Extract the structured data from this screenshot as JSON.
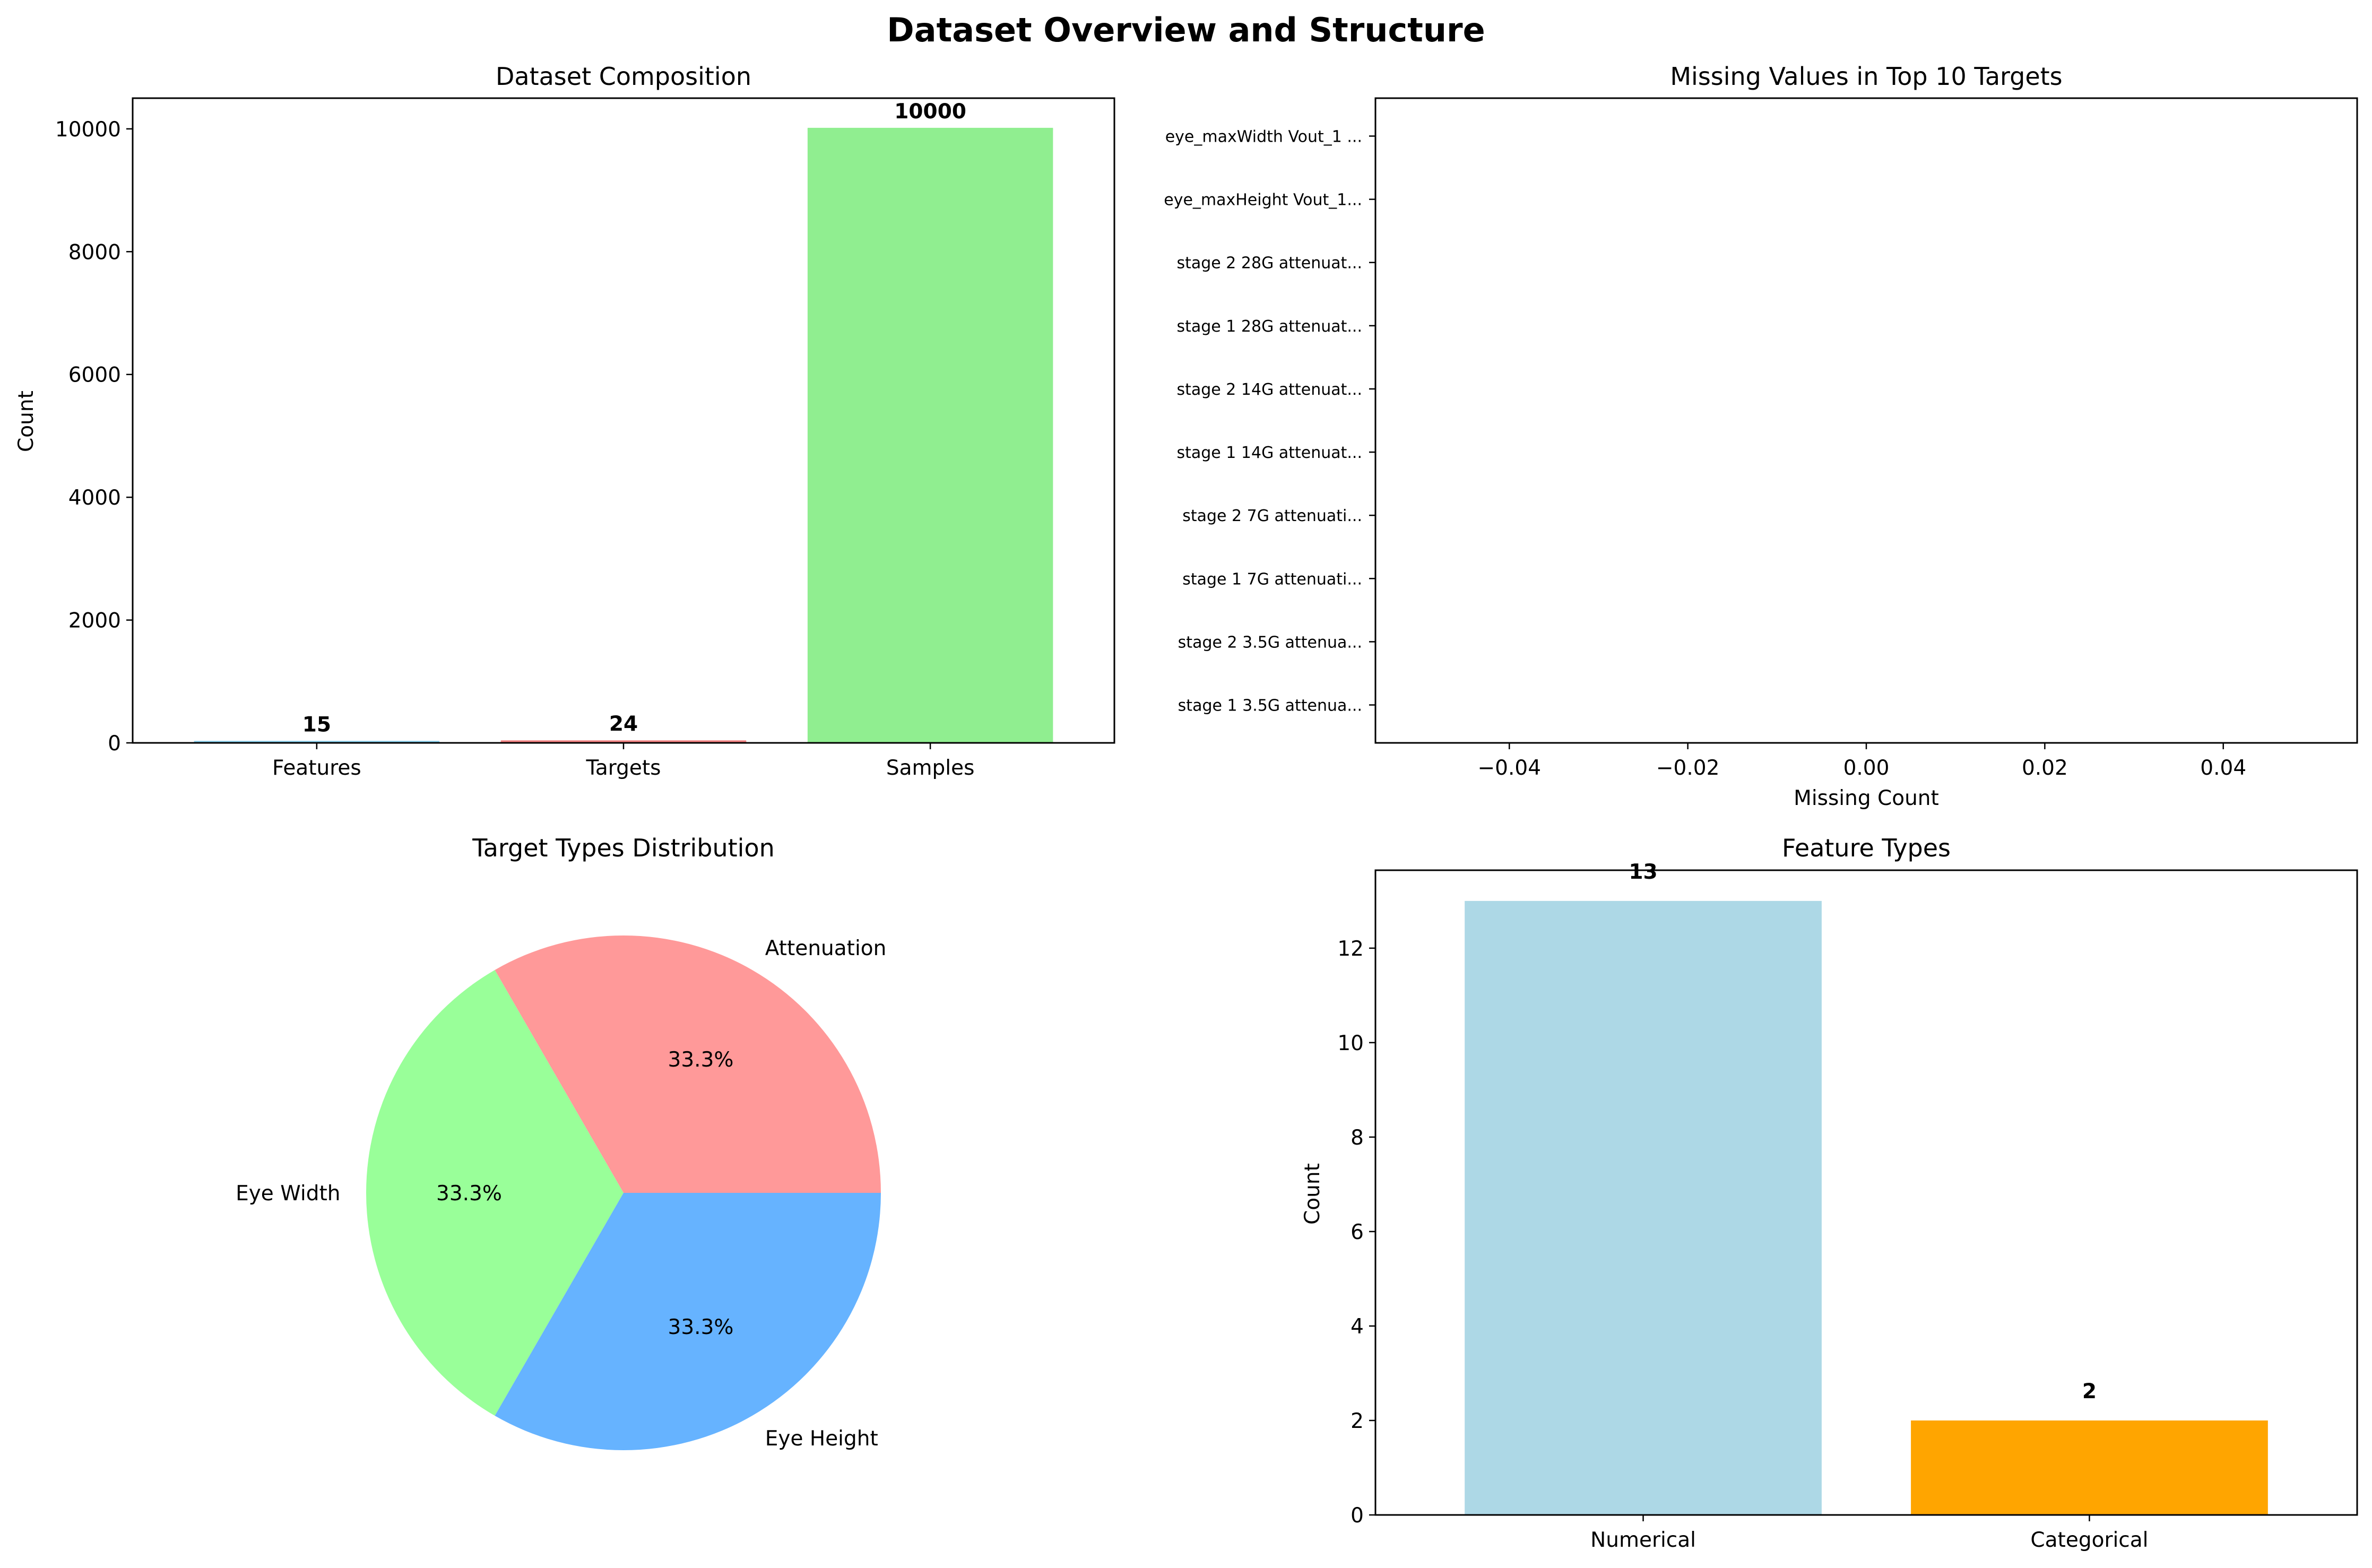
{
  "figure": {
    "title": "Dataset Overview and Structure"
  },
  "chart_data": [
    {
      "id": "composition",
      "type": "bar",
      "title": "Dataset Composition",
      "xlabel": "",
      "ylabel": "Count",
      "categories": [
        "Features",
        "Targets",
        "Samples"
      ],
      "values": [
        15,
        24,
        10000
      ],
      "value_labels": [
        "15",
        "24",
        "10000"
      ],
      "colors": [
        "#87ceeb",
        "#f08080",
        "#90ee90"
      ],
      "ylim": [
        0,
        10500
      ],
      "yticks": [
        0,
        2000,
        4000,
        6000,
        8000,
        10000
      ],
      "ytick_labels": [
        "0",
        "2000",
        "4000",
        "6000",
        "8000",
        "10000"
      ],
      "grid": false
    },
    {
      "id": "missing",
      "type": "bar",
      "orientation": "horizontal",
      "title": "Missing Values in Top 10 Targets",
      "xlabel": "Missing Count",
      "ylabel": "",
      "categories": [
        "stage 1 3.5G attenua...",
        "stage 2 3.5G attenua...",
        "stage 1 7G attenuati...",
        "stage 2 7G attenuati...",
        "stage 1 14G attenuat...",
        "stage 2 14G attenuat...",
        "stage 1 28G attenuat...",
        "stage 2 28G attenuat...",
        "eye_maxHeight Vout_1...",
        "eye_maxWidth Vout_1 ..."
      ],
      "values": [
        0,
        0,
        0,
        0,
        0,
        0,
        0,
        0,
        0,
        0
      ],
      "xlim": [
        -0.055,
        0.055
      ],
      "xticks": [
        -0.04,
        -0.02,
        0.0,
        0.02,
        0.04
      ],
      "xtick_labels": [
        "−0.04",
        "−0.02",
        "0.00",
        "0.02",
        "0.04"
      ],
      "grid": false
    },
    {
      "id": "target_types",
      "type": "pie",
      "title": "Target Types Distribution",
      "labels": [
        "Attenuation",
        "Eye Width",
        "Eye Height"
      ],
      "values": [
        8,
        8,
        8
      ],
      "pct_labels": [
        "33.3%",
        "33.3%",
        "33.3%"
      ],
      "colors": [
        "#ff9999",
        "#99ff99",
        "#66b3ff"
      ],
      "startangle": 0
    },
    {
      "id": "feature_types",
      "type": "bar",
      "title": "Feature Types",
      "xlabel": "",
      "ylabel": "Count",
      "categories": [
        "Numerical",
        "Categorical"
      ],
      "values": [
        13,
        2
      ],
      "value_labels": [
        "13",
        "2"
      ],
      "colors": [
        "#add8e6",
        "#ffa500"
      ],
      "ylim": [
        0,
        13.65
      ],
      "yticks": [
        0,
        2,
        4,
        6,
        8,
        10,
        12
      ],
      "ytick_labels": [
        "0",
        "2",
        "4",
        "6",
        "8",
        "10",
        "12"
      ],
      "grid": false
    }
  ]
}
